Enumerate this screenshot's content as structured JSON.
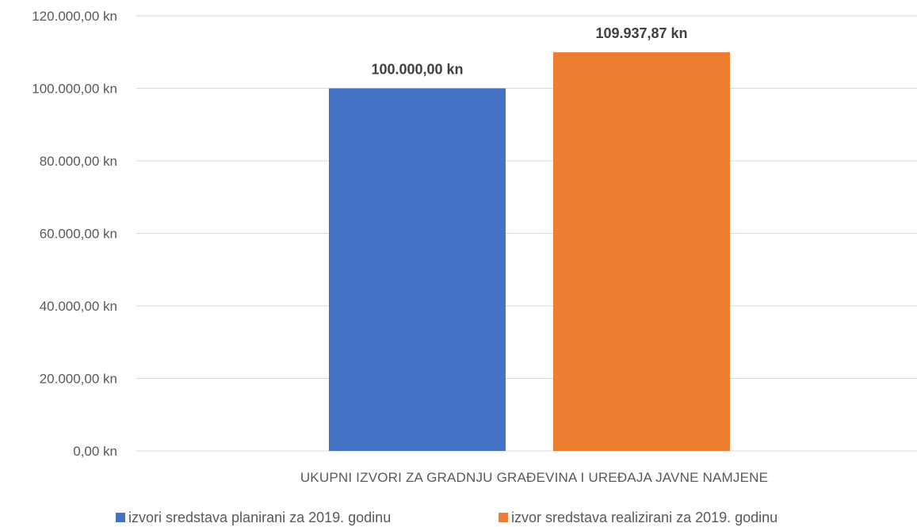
{
  "chart_data": {
    "type": "bar",
    "categories": [
      "UKUPNI IZVORI ZA GRADNJU GRAĐEVINA I UREĐAJA JAVNE NAMJENE"
    ],
    "series": [
      {
        "name": "izvori sredstava planirani za 2019. godinu",
        "values": [
          100000.0
        ],
        "data_labels": [
          "100.000,00 kn"
        ],
        "color": "#4472C4"
      },
      {
        "name": "izvor sredstava realizirani za 2019. godinu",
        "values": [
          109937.87
        ],
        "data_labels": [
          "109.937,87 kn"
        ],
        "color": "#ED7D31"
      }
    ],
    "ylim": [
      0,
      120000
    ],
    "yticks": [
      0,
      20000,
      40000,
      60000,
      80000,
      100000,
      120000
    ],
    "ytick_labels": [
      "0,00 kn",
      "20.000,00 kn",
      "40.000,00 kn",
      "60.000,00 kn",
      "80.000,00 kn",
      "100.000,00 kn",
      "120.000,00 kn"
    ],
    "grid": true,
    "legend_position": "bottom",
    "gridline_color": "#D9D9D9",
    "text_color": "#595959"
  }
}
